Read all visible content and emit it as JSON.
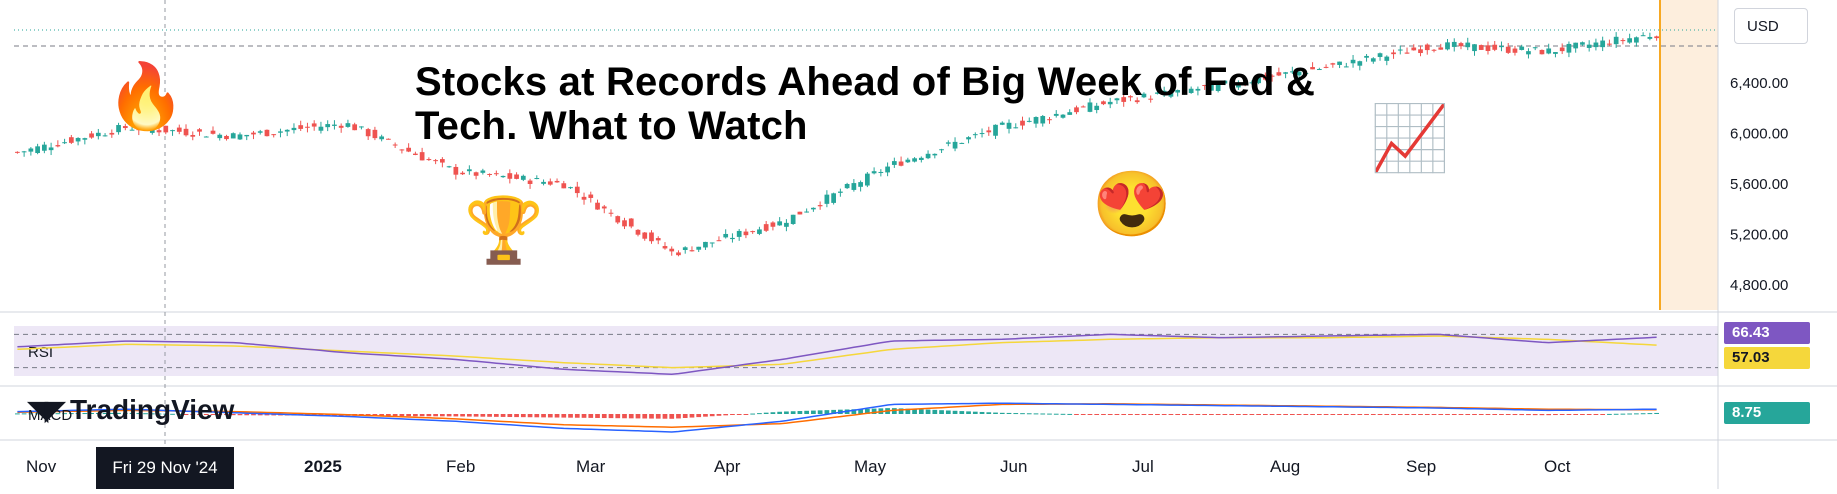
{
  "headline": "Stocks at Records Ahead of Big Week of Fed & Tech. What to Watch",
  "brand": "TradingView",
  "currency": "USD",
  "crosshair_date": "Fri 29 Nov '24",
  "emojis": {
    "fire": "🔥",
    "trophy": "🏆",
    "heart_eyes": "😍",
    "chart": "📈"
  },
  "colors": {
    "up": "#26a69a",
    "down": "#ef5350",
    "rsi": "#7e57c2",
    "rsi_ma": "#f5d73b",
    "macd": "#2962ff",
    "signal": "#ff6d00",
    "highlight": "#fdeedd",
    "panel_bg": "#ede7f6"
  },
  "badges": {
    "rsi": "66.43",
    "rsi_ma": "57.03",
    "macd_hist": "8.75"
  },
  "chart_data": [
    {
      "type": "line",
      "series_kind": "candlestick",
      "x": [
        "2024-11",
        "2024-12",
        "2025-01",
        "2025-02",
        "2025-03",
        "2025-04-01",
        "2025-04-08",
        "2025-04-15",
        "2025-05",
        "2025-06",
        "2025-07",
        "2025-08",
        "2025-09",
        "2025-10-01",
        "2025-10-15",
        "2025-10-24"
      ],
      "series": [
        {
          "values": [
            5850,
            6050,
            5980,
            6080,
            5700,
            5600,
            5050,
            5300,
            5750,
            6050,
            6250,
            6380,
            6530,
            6700,
            6650,
            6790
          ]
        }
      ],
      "xtick_labels": [
        "Nov",
        "2025",
        "Feb",
        "Mar",
        "Apr",
        "May",
        "Jun",
        "Jul",
        "Aug",
        "Sep",
        "Oct"
      ],
      "ytick_labels": [
        "6,400.00",
        "6,000.00",
        "5,600.00",
        "5,200.00",
        "4,800.00"
      ],
      "ylim": [
        4600,
        6900
      ],
      "grid": false
    },
    {
      "type": "line",
      "series": [
        {
          "name": "RSI",
          "values": [
            55,
            62,
            60,
            48,
            40,
            28,
            22,
            40,
            62,
            64,
            70,
            66,
            68,
            70,
            60,
            66.43
          ]
        },
        {
          "values": [
            52,
            58,
            56,
            50,
            44,
            36,
            30,
            34,
            52,
            60,
            64,
            66,
            66,
            68,
            64,
            57.03
          ]
        }
      ],
      "bands": [
        30,
        70
      ],
      "ylim": [
        20,
        80
      ]
    },
    {
      "type": "bar",
      "series": [
        {
          "name": "MACD",
          "values": [
            20,
            40,
            10,
            -20,
            -60,
            -120,
            -150,
            -60,
            80,
            90,
            80,
            70,
            60,
            50,
            30,
            40
          ]
        },
        {
          "values": [
            15,
            30,
            20,
            -5,
            -40,
            -90,
            -110,
            -80,
            30,
            80,
            85,
            75,
            65,
            55,
            40,
            35
          ]
        },
        {
          "values": [
            5,
            10,
            -10,
            -15,
            -20,
            -30,
            -40,
            20,
            50,
            10,
            -5,
            -5,
            -5,
            -5,
            -10,
            8.75
          ]
        }
      ]
    }
  ]
}
